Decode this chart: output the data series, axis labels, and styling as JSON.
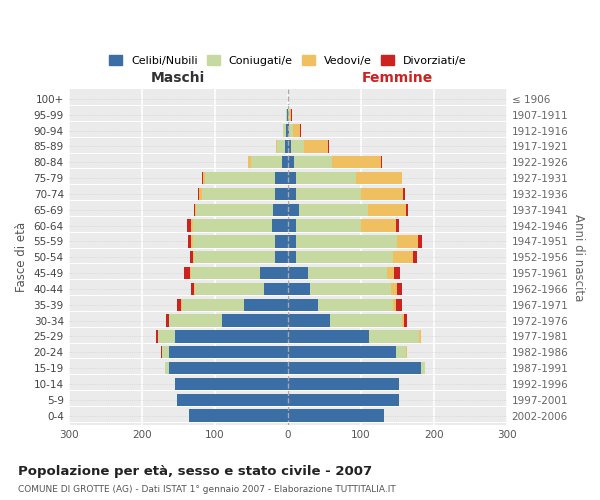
{
  "age_groups": [
    "100+",
    "95-99",
    "90-94",
    "85-89",
    "80-84",
    "75-79",
    "70-74",
    "65-69",
    "60-64",
    "55-59",
    "50-54",
    "45-49",
    "40-44",
    "35-39",
    "30-34",
    "25-29",
    "20-24",
    "15-19",
    "10-14",
    "5-9",
    "0-4"
  ],
  "birth_years": [
    "≤ 1906",
    "1907-1911",
    "1912-1916",
    "1917-1921",
    "1922-1926",
    "1927-1931",
    "1932-1936",
    "1937-1941",
    "1942-1946",
    "1947-1951",
    "1952-1956",
    "1957-1961",
    "1962-1966",
    "1967-1971",
    "1972-1976",
    "1977-1981",
    "1982-1986",
    "1987-1991",
    "1992-1996",
    "1997-2001",
    "2002-2006"
  ],
  "maschi": {
    "celibi": [
      0,
      1,
      2,
      4,
      8,
      18,
      18,
      20,
      22,
      18,
      18,
      38,
      32,
      60,
      90,
      155,
      162,
      163,
      155,
      152,
      135
    ],
    "coniugati": [
      0,
      1,
      4,
      10,
      42,
      95,
      100,
      105,
      108,
      112,
      110,
      95,
      95,
      85,
      72,
      22,
      10,
      5,
      0,
      0,
      0
    ],
    "vedovi": [
      0,
      0,
      1,
      2,
      4,
      3,
      3,
      2,
      2,
      2,
      2,
      1,
      1,
      1,
      1,
      1,
      0,
      0,
      0,
      0,
      0
    ],
    "divorziati": [
      0,
      0,
      0,
      0,
      0,
      2,
      2,
      2,
      6,
      4,
      4,
      8,
      5,
      5,
      3,
      2,
      1,
      0,
      0,
      0,
      0
    ]
  },
  "femmine": {
    "nubili": [
      1,
      1,
      2,
      4,
      8,
      12,
      12,
      15,
      12,
      12,
      12,
      28,
      30,
      42,
      58,
      112,
      148,
      183,
      152,
      153,
      132
    ],
    "coniugate": [
      0,
      2,
      5,
      18,
      52,
      82,
      88,
      95,
      88,
      138,
      132,
      108,
      112,
      102,
      98,
      68,
      14,
      5,
      0,
      0,
      0
    ],
    "vedove": [
      0,
      2,
      10,
      33,
      68,
      62,
      58,
      52,
      48,
      28,
      28,
      10,
      8,
      5,
      3,
      2,
      1,
      0,
      0,
      0,
      0
    ],
    "divorziate": [
      0,
      1,
      1,
      1,
      1,
      1,
      2,
      3,
      4,
      6,
      5,
      8,
      6,
      8,
      5,
      1,
      1,
      0,
      0,
      0,
      0
    ]
  },
  "colors": {
    "celibi": "#3a6ea5",
    "coniugati": "#c5d9a0",
    "vedovi": "#f0c060",
    "divorziati": "#cc2222"
  },
  "title": "Popolazione per età, sesso e stato civile - 2007",
  "subtitle": "COMUNE DI GROTTE (AG) - Dati ISTAT 1° gennaio 2007 - Elaborazione TUTTITALIA.IT",
  "ylabel": "Fasce di età",
  "ylabel_right": "Anni di nascita",
  "xlabel_maschi": "Maschi",
  "xlabel_femmine": "Femmine",
  "xlim": 300,
  "bg_color": "#ffffff",
  "ax_bg_color": "#ebebeb",
  "grid_color": "#ffffff",
  "legend_labels": [
    "Celibi/Nubili",
    "Coniugati/e",
    "Vedovi/e",
    "Divorziati/e"
  ]
}
